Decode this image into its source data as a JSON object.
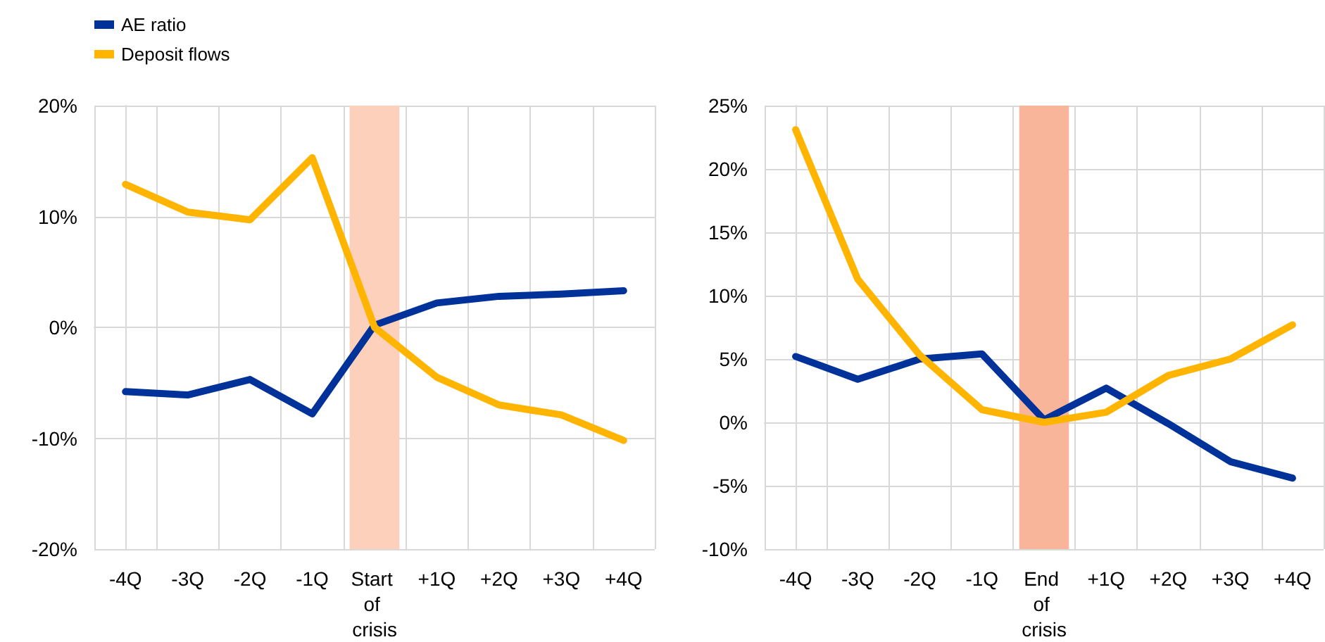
{
  "chart_data": [
    {
      "type": "line",
      "categories": [
        "-4Q",
        "-3Q",
        "-2Q",
        "-1Q",
        "Start of crisis",
        "+1Q",
        "+2Q",
        "+3Q",
        "+4Q"
      ],
      "series": [
        {
          "name": "AE ratio",
          "color": "#003299",
          "values": [
            -5.8,
            -6.1,
            -4.7,
            -7.8,
            0.2,
            2.2,
            2.8,
            3.0,
            3.3
          ]
        },
        {
          "name": "Deposit flows",
          "color": "#ffb400",
          "values": [
            12.9,
            10.4,
            9.7,
            15.3,
            0.0,
            -4.5,
            -7.0,
            -7.9,
            -10.2
          ]
        }
      ],
      "ylim": [
        -20,
        20
      ],
      "yticks": [
        {
          "value": -20,
          "label": "-20%"
        },
        {
          "value": -10,
          "label": "-10%"
        },
        {
          "value": 0,
          "label": "0%"
        },
        {
          "value": 10,
          "label": "10%"
        },
        {
          "value": 20,
          "label": "20%"
        }
      ],
      "bands": [
        {
          "axis": "x",
          "from": "Start of crisis",
          "to": "Start of crisis",
          "color": "#fdd0bc"
        }
      ],
      "grid": true,
      "legend": "top left",
      "marker": "none",
      "line_style": "solid"
    },
    {
      "type": "line",
      "categories": [
        "-4Q",
        "-3Q",
        "-2Q",
        "-1Q",
        "End of crisis",
        "+1Q",
        "+2Q",
        "+3Q",
        "+4Q"
      ],
      "series": [
        {
          "color": "#003299",
          "values": [
            5.2,
            3.4,
            5.0,
            5.4,
            0.2,
            2.7,
            -0.1,
            -3.1,
            -4.4
          ]
        },
        {
          "color": "#ffb400",
          "values": [
            23.1,
            11.3,
            5.3,
            1.0,
            0.0,
            0.8,
            3.7,
            5.0,
            7.7
          ]
        }
      ],
      "ylim": [
        -10,
        25
      ],
      "yticks": [
        {
          "value": -10,
          "label": "-10%"
        },
        {
          "value": -5,
          "label": "-5%"
        },
        {
          "value": 0,
          "label": "0%"
        },
        {
          "value": 5,
          "label": "5%"
        },
        {
          "value": 10,
          "label": "10%"
        },
        {
          "value": 15,
          "label": "15%"
        },
        {
          "value": 20,
          "label": "20%"
        },
        {
          "value": 25,
          "label": "25%"
        }
      ],
      "bands": [
        {
          "axis": "x",
          "from": "End of crisis",
          "to": "End of crisis",
          "color": "#f8b59a"
        }
      ],
      "grid": true,
      "marker": "none",
      "line_style": "solid"
    }
  ]
}
